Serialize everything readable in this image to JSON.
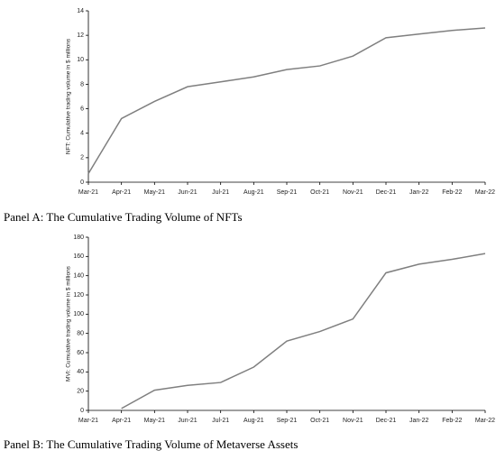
{
  "chart_data": [
    {
      "type": "line",
      "y_label": "NFT: Cumulative trading volume in $ millions",
      "caption": "Panel A: The Cumulative Trading Volume of NFTs",
      "categories": [
        "Mar-21",
        "Apr-21",
        "May-21",
        "Jun-21",
        "Jul-21",
        "Aug-21",
        "Sep-21",
        "Oct-21",
        "Nov-21",
        "Dec-21",
        "Jan-22",
        "Feb-22",
        "Mar-22"
      ],
      "values": [
        0.7,
        5.2,
        6.6,
        7.8,
        8.2,
        8.6,
        9.2,
        9.5,
        10.3,
        11.8,
        12.1,
        12.4,
        12.6
      ],
      "color": "#7f7f7f",
      "ylim": [
        0,
        14
      ],
      "yticks": [
        0,
        2,
        4,
        6,
        8,
        10,
        12,
        14
      ]
    },
    {
      "type": "line",
      "y_label": "MVI: Cumulative trading volume in $ millions",
      "caption": "Panel B: The Cumulative Trading Volume of Metaverse Assets",
      "categories": [
        "Mar-21",
        "Apr-21",
        "May-21",
        "Jun-21",
        "Jul-21",
        "Aug-21",
        "Sep-21",
        "Oct-21",
        "Nov-21",
        "Dec-21",
        "Jan-22",
        "Feb-22",
        "Mar-22"
      ],
      "values": [
        null,
        2,
        21,
        26,
        29,
        45,
        72,
        82,
        95,
        143,
        152,
        157,
        163
      ],
      "color": "#7f7f7f",
      "ylim": [
        0,
        180
      ],
      "yticks": [
        0,
        20,
        40,
        60,
        80,
        100,
        120,
        140,
        160,
        180
      ]
    }
  ]
}
